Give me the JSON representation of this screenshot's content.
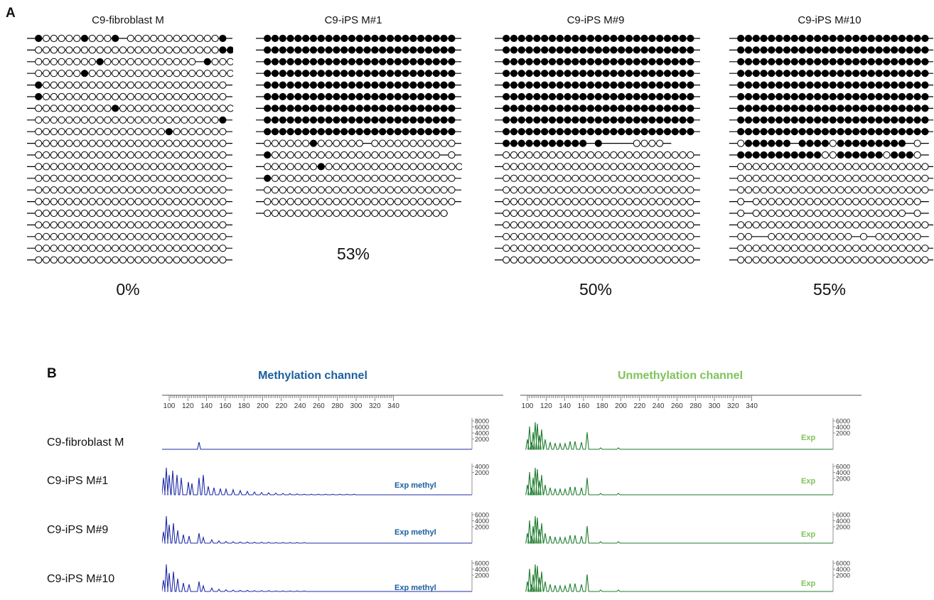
{
  "panel_a": {
    "label": "A",
    "samples": [
      {
        "title": "C9-fibroblast M",
        "percent": "0%",
        "rows": [
          "-●ooooo●ooo●—oooooooooooo●-",
          "-oooooooooooooooooooooooo●●",
          "-oooooooo●oooooooooooo—●ooo-",
          "-oooooo●ooooooooooooooooooo-",
          "-●oooooooooooooooooooooooo-",
          "-●oooooooooooooooooooooooo-",
          "-oooooooooo●ooooooooooooooo-",
          "-oooooooooooooooooooooooo●-",
          "-ooooooooooooooooo●ooooooo—",
          "-ooooooooooooooooooooooooo-",
          "-ooooooooooooooooooooooooo-",
          "-ooooooooooooooooooooooooo-",
          "-ooooooooooooooooooooooooo-",
          "-ooooooooooooooooooooooooo-",
          "-ooooooooooooooooooooooooo-",
          "-ooooooooooooooooooooooooo-",
          "-ooooooooooooooooooooooooo-",
          "-ooooooooooooooooooooooooo-",
          "-ooooooooooooooooooooooooo-",
          "-ooooooooooooooooooooooooo-"
        ]
      },
      {
        "title": "C9-iPS M#1",
        "percent": "53%",
        "rows": [
          "-●●●●●●●●●●●●●●●●●●●●●●●●●-",
          "-●●●●●●●●●●●●●●●●●●●●●●●●●-",
          "-●●●●●●●●●●●●●●●●●●●●●●●●●-",
          "-●●●●●●●●●●●●●●●●●●●●●●●●●-",
          "-●●●●●●●●●●●●●●●●●●●●●●●●●-",
          "-●●●●●●●●●●●●●●●●●●●●●●●●●-",
          "-●●●●●●●●●●●●●●●●●●●●●●●●●-",
          "-●●●●●●●●●●●●●●●●●●●●●●●●●-",
          "-●●●●●●●●●●●●●●●●●●●●●●●●●-",
          "-oooooo●oooooo—ooooooooooo-",
          "-●oooooooooooooooooooooo—o-",
          "-ooooooo●oooooooooooooooooo-",
          "-●oooooooooooooooooooooooo-",
          "-ooooooooooooooooooooooooo-",
          "-ooooooooooooooooooooooooo-",
          "—oooooooooooooooooooooooo"
        ]
      },
      {
        "title": "C9-iPS M#9",
        "percent": "50%",
        "rows": [
          "-●●●●●●●●●●●●●●●●●●●●●●●●●-",
          "-●●●●●●●●●●●●●●●●●●●●●●●●●-",
          "-●●●●●●●●●●●●●●●●●●●●●●●●●-",
          "-●●●●●●●●●●●●●●●●●●●●●●●●●-",
          "-●●●●●●●●●●●●●●●●●●●●●●●●●-",
          "-●●●●●●●●●●●●●●●●●●●●●●●●●-",
          "-●●●●●●●●●●●●●●●●●●●●●●●●●-",
          "-●●●●●●●●●●●●●●●●●●●●●●●●●-",
          "-●●●●●●●●●●●●●●●●●●●●●●●●●-",
          "-●●●●●●●●●●●—●————oooo-",
          "-ooooooooooooooooooooooooo-",
          "-ooooooooooooooooooooooooo-",
          "-ooooooooooooooooooooooooo-",
          "-ooooooooooooooooooooooooo-",
          "-ooooooooooooooooooooooooo-",
          "-ooooooooooooooooooooooooo-",
          "-ooooooooooooooooooooooooo-",
          "-ooooooooooooooooooooooooo-",
          "-ooooooooooooooooooooooooo-",
          "-ooooooooooooooooooooooooo-"
        ]
      },
      {
        "title": "C9-iPS M#10",
        "percent": "55%",
        "rows": [
          "-●●●●●●●●●●●●●●●●●●●●●●●●●-",
          "-●●●●●●●●●●●●●●●●●●●●●●●●●-",
          "-●●●●●●●●●●●●●●●●●●●●●●●●●-",
          "-●●●●●●●●●●●●●●●●●●●●●●●●●-",
          "-●●●●●●●●●●●●●●●●●●●●●●●●●-",
          "-●●●●●●●●●●●●●●●●●●●●●●●●●-",
          "-●●●●●●●●●●●●●●●●●●●●●●●●●-",
          "-●●●●●●●●●●●●●●●●●●●●●●●●●-",
          "-●●●●●●●●●●●●●●●●●●●●●●●●●-",
          "-o●●●●●●—●●●●o●●●●●●●●●—o-",
          "-●●●●●●●●●●●oo●●●●●●o●●●o-",
          "-ooooooooooooooooooooooooo-",
          "-ooooooooooooooooooooooooo-",
          "-ooooooooooooooooooooooooo-",
          "-o—oooooooooooooooooooooo-",
          "-o—oooooooooooooooooooo—o-",
          "—ooooooooooooooooooooooooo-",
          "—oo——ooooooooooo—o—oooooo-",
          "-ooooooooooooooooooooooooo-",
          "-ooooooooooooooooooooooooo-"
        ]
      }
    ]
  },
  "panel_b": {
    "label": "B",
    "channels": [
      {
        "title": "Methylation channel",
        "color": "#1a5f9e",
        "trace_color": "#1f2ba8"
      },
      {
        "title": "Unmethylation channel",
        "color": "#7fc35a",
        "trace_color": "#1e7d2e"
      }
    ],
    "ruler_ticks": [
      "100",
      "120",
      "140",
      "160",
      "180",
      "200",
      "220",
      "240",
      "260",
      "280",
      "300",
      "320",
      "340"
    ],
    "rows": [
      {
        "label": "C9-fibroblast M",
        "meth_note": "",
        "meth_scale": [
          "8000",
          "6000",
          "4000",
          "2000"
        ],
        "meth_profile": "single",
        "unmeth_note": "Exp",
        "unmeth_scale": [
          "6000",
          "4000",
          "2000"
        ]
      },
      {
        "label": "C9-iPS M#1",
        "meth_note": "Exp methyl",
        "meth_scale": [
          "4000",
          "2000"
        ],
        "meth_profile": "full",
        "unmeth_note": "Exp",
        "unmeth_scale": [
          "6000",
          "4000",
          "2000"
        ]
      },
      {
        "label": "C9-iPS M#9",
        "meth_note": "Exp methyl",
        "meth_scale": [
          "6000",
          "4000",
          "2000"
        ],
        "meth_profile": "short",
        "unmeth_note": "Exp",
        "unmeth_scale": [
          "6000",
          "4000",
          "2000"
        ]
      },
      {
        "label": "C9-iPS M#10",
        "meth_note": "Exp methyl",
        "meth_scale": [
          "6000",
          "4000",
          "2000"
        ],
        "meth_profile": "short",
        "unmeth_note": "Exp",
        "unmeth_scale": [
          "6000",
          "4000",
          "2000"
        ]
      }
    ]
  }
}
